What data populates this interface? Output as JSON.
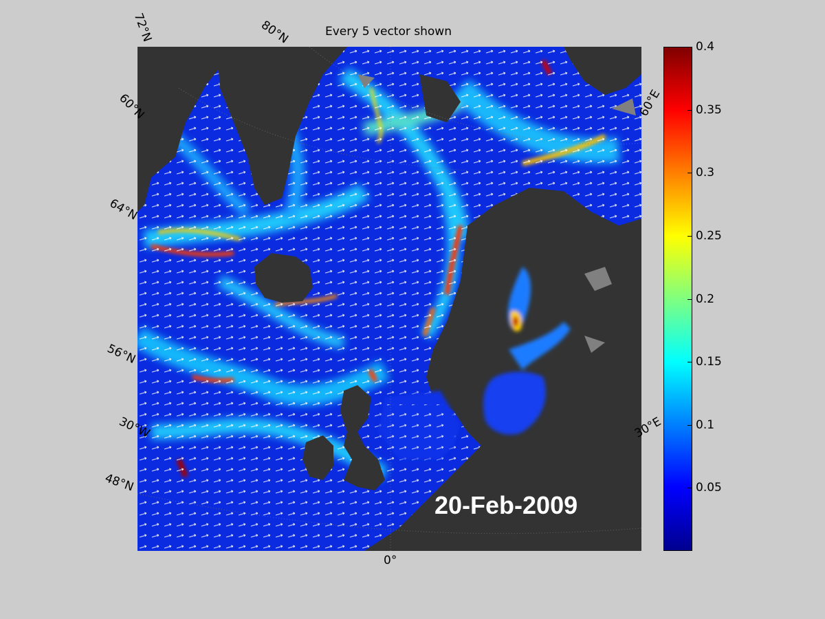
{
  "title": "Every 5 vector shown",
  "date_stamp": "20-Feb-2009",
  "colorbar": {
    "range": [
      0,
      0.4
    ],
    "ticks": [
      "0.4",
      "0.35",
      "0.3",
      "0.25",
      "0.2",
      "0.15",
      "0.1",
      "0.05"
    ],
    "colormap": "jet"
  },
  "lat_labels": [
    "72°N",
    "60°N",
    "64°N",
    "56°N",
    "48°N"
  ],
  "lon_labels": [
    "80°N",
    "60°E",
    "30°W",
    "30°E",
    "0°"
  ],
  "colors": {
    "land": "#333333",
    "ice": "#808080",
    "background": "#cccccc",
    "vectors": "#ffffff"
  }
}
